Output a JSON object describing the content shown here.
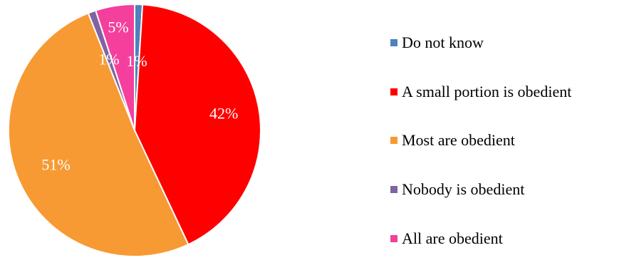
{
  "chart_data": {
    "type": "pie",
    "categories": [
      "Do not know",
      "A small portion is obedient",
      "Most are obedient",
      "Nobody is obedient",
      "All are obedient"
    ],
    "values": [
      1,
      42,
      51,
      1,
      5
    ],
    "data_labels": [
      "1%",
      "42%",
      "51%",
      "1%",
      "5%"
    ],
    "colors": [
      "#4f81bd",
      "#ff0000",
      "#f79a33",
      "#8064a2",
      "#f43f9c"
    ],
    "legend_position": "right",
    "start_angle_deg": 0,
    "direction": "clockwise"
  }
}
